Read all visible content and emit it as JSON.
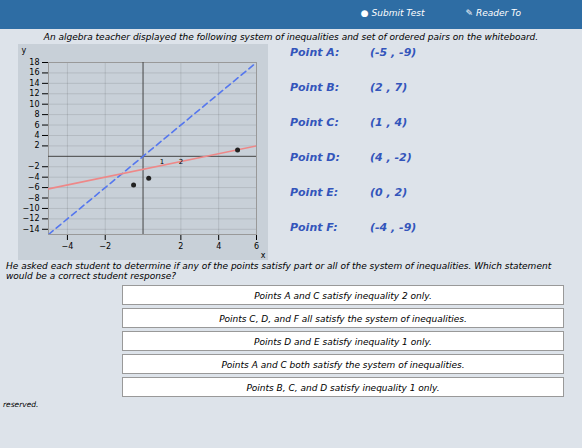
{
  "chart_data": {
    "type": "scatter",
    "title": "An algebra teacher displayed the following system of inequalities and set of ordered pairs on the whiteboard.",
    "header_items": [
      "●  Submit Test",
      "✎  Reader To"
    ],
    "x_label": "x",
    "y_label": "y",
    "xlim": [
      -5,
      6
    ],
    "xticks": [
      -4,
      -2,
      2,
      4,
      6
    ],
    "ylim": [
      -15,
      18
    ],
    "yticks": [
      -14,
      -12,
      -10,
      -8,
      -6,
      -4,
      -2,
      2,
      4,
      6,
      8,
      10,
      12,
      14,
      16,
      18
    ],
    "grid": true,
    "series": [
      {
        "type": "line",
        "color": "#5577ee",
        "line_style": "dashed",
        "x": [
          -5,
          6
        ],
        "values": [
          -15,
          18
        ]
      },
      {
        "type": "line",
        "color": "#ee8888",
        "line_style": "solid",
        "x": [
          -5,
          6
        ],
        "values": [
          -6.25,
          2
        ]
      },
      {
        "type": "scatter",
        "color": "#222222",
        "marker": "circle",
        "x": [
          5.0,
          -0.5,
          0.3
        ],
        "values": [
          1.2,
          -5.5,
          -4.2
        ]
      }
    ],
    "annotations": [
      {
        "text": "1",
        "x": 1,
        "y": -1.1
      },
      {
        "text": "2",
        "x": 2,
        "y": -1.1
      }
    ],
    "points": [
      {
        "label": "Point A:",
        "coords": "(-5 , -9)"
      },
      {
        "label": "Point B:",
        "coords": "(2 , 7)"
      },
      {
        "label": "Point C:",
        "coords": "(1 , 4)"
      },
      {
        "label": "Point D:",
        "coords": "(4 , -2)"
      },
      {
        "label": "Point E:",
        "coords": "(0 , 2)"
      },
      {
        "label": "Point F:",
        "coords": "(-4 , -9)"
      }
    ],
    "question": "He asked each student to determine if any of the points satisfy part or all of the system of inequalities. Which statement would be a correct student response?",
    "answer_choices": [
      "Points A and C satisfy inequality 2 only.",
      "Points C, D, and F all satisfy the system of inequalities.",
      "Points D and E satisfy inequality 1 only.",
      "Points A and C both satisfy the system of inequalities.",
      "Points B, C, and D satisfy inequality 1 only."
    ],
    "footer": "reserved."
  }
}
